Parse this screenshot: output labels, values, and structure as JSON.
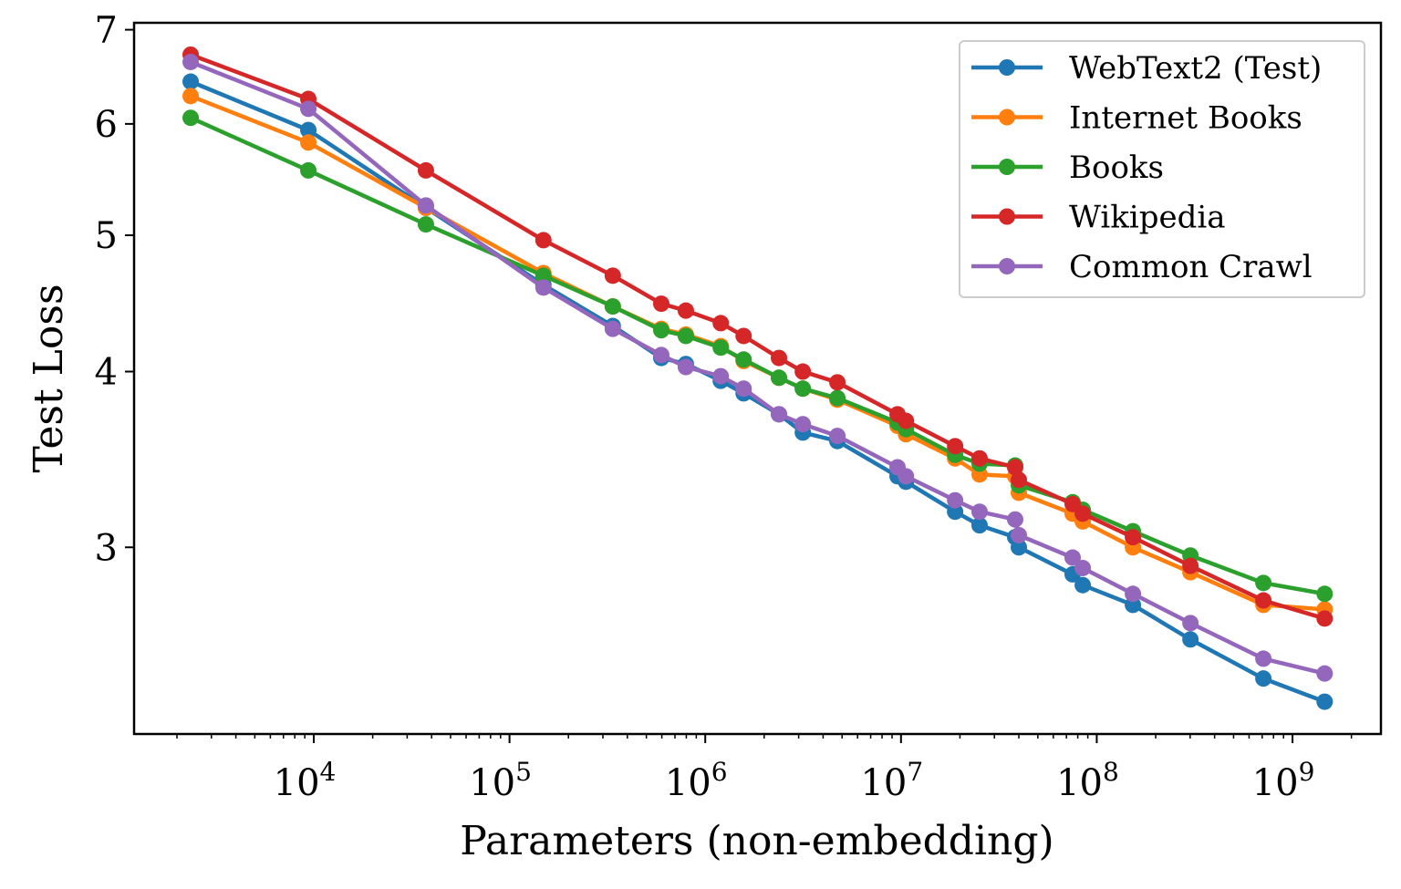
{
  "chart_data": {
    "type": "line",
    "title": "",
    "xlabel": "Parameters (non-embedding)",
    "ylabel": "Test Loss",
    "xscale": "log",
    "yscale": "log",
    "xlim": [
      1208,
      2830000000
    ],
    "ylim": [
      2.21,
      7.08
    ],
    "grid": false,
    "legend_position": "top-right",
    "x_ticks": [
      {
        "value": 10000,
        "base": "10",
        "exp": "4"
      },
      {
        "value": 100000,
        "base": "10",
        "exp": "5"
      },
      {
        "value": 1000000,
        "base": "10",
        "exp": "6"
      },
      {
        "value": 10000000,
        "base": "10",
        "exp": "7"
      },
      {
        "value": 100000000,
        "base": "10",
        "exp": "8"
      },
      {
        "value": 1000000000,
        "base": "10",
        "exp": "9"
      }
    ],
    "y_ticks": [
      {
        "value": 3,
        "label": "3"
      },
      {
        "value": 4,
        "label": "4"
      },
      {
        "value": 5,
        "label": "5"
      },
      {
        "value": 6,
        "label": "6"
      },
      {
        "value": 7,
        "label": "7"
      }
    ],
    "x": [
      2350,
      9380,
      37400,
      149000,
      337000,
      596000,
      796000,
      1200000,
      1570000,
      2380000,
      3150000,
      4730000,
      9600000,
      10600000,
      18900000,
      25200000,
      38300000,
      40000000,
      75300000,
      84800000,
      153000000,
      301000000,
      710000000,
      1460000000
    ],
    "series": [
      {
        "name": "WebText2 (Test)",
        "color": "#1f77b4",
        "values": [
          6.43,
          5.94,
          5.23,
          4.61,
          4.31,
          4.09,
          4.05,
          3.94,
          3.86,
          3.73,
          3.62,
          3.57,
          3.37,
          3.34,
          3.18,
          3.11,
          3.05,
          3.0,
          2.87,
          2.82,
          2.73,
          2.58,
          2.42,
          2.33
        ]
      },
      {
        "name": "Internet Books",
        "color": "#ff7f0e",
        "values": [
          6.28,
          5.82,
          5.23,
          4.7,
          4.45,
          4.29,
          4.25,
          4.17,
          4.07,
          3.96,
          3.89,
          3.82,
          3.66,
          3.61,
          3.47,
          3.38,
          3.37,
          3.28,
          3.17,
          3.13,
          3.0,
          2.88,
          2.73,
          2.71
        ]
      },
      {
        "name": "Books",
        "color": "#2ca02c",
        "values": [
          6.06,
          5.56,
          5.09,
          4.68,
          4.45,
          4.28,
          4.24,
          4.16,
          4.08,
          3.96,
          3.89,
          3.83,
          3.68,
          3.64,
          3.49,
          3.44,
          3.43,
          3.32,
          3.23,
          3.19,
          3.08,
          2.96,
          2.83,
          2.78
        ]
      },
      {
        "name": "Wikipedia",
        "color": "#d62728",
        "values": [
          6.72,
          6.25,
          5.56,
          4.96,
          4.68,
          4.47,
          4.42,
          4.33,
          4.24,
          4.09,
          4.0,
          3.93,
          3.73,
          3.69,
          3.54,
          3.47,
          3.42,
          3.35,
          3.22,
          3.17,
          3.05,
          2.91,
          2.75,
          2.67
        ]
      },
      {
        "name": "Common Crawl",
        "color": "#9467bd",
        "values": [
          6.64,
          6.15,
          5.25,
          4.59,
          4.29,
          4.11,
          4.03,
          3.97,
          3.89,
          3.73,
          3.67,
          3.6,
          3.42,
          3.37,
          3.24,
          3.18,
          3.14,
          3.06,
          2.95,
          2.9,
          2.78,
          2.65,
          2.5,
          2.44
        ]
      }
    ]
  }
}
